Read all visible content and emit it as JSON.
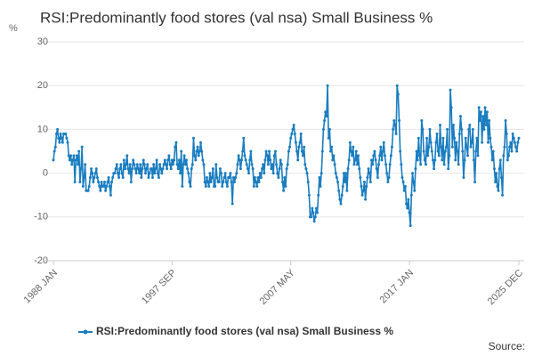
{
  "chart_data": {
    "type": "line",
    "title": "RSI:Predominantly food stores (val nsa) Small Business %",
    "y_label": "%",
    "source": "Source:",
    "categories": [
      "1988 JAN",
      null,
      null,
      null,
      null,
      null,
      null,
      null,
      null,
      null,
      null,
      null,
      null,
      null,
      null,
      null,
      null,
      null,
      null,
      null,
      null,
      null,
      null,
      null,
      null,
      null,
      null,
      null,
      null,
      null,
      null,
      null,
      null,
      null,
      null,
      null,
      null,
      null,
      null,
      null,
      null,
      null,
      null,
      null,
      null,
      null,
      null,
      null,
      null,
      null,
      null,
      null,
      null,
      null,
      null,
      null,
      null,
      null,
      null,
      null,
      null,
      null,
      null,
      null,
      null,
      null,
      null,
      null,
      null,
      null,
      null,
      null,
      null,
      null,
      null,
      null,
      null,
      null,
      null,
      null,
      null,
      null,
      null,
      null,
      null,
      null,
      null,
      null,
      null,
      null,
      null,
      null,
      null,
      null,
      null,
      null,
      null,
      null,
      null,
      null,
      null,
      null,
      null,
      null,
      null,
      null,
      null,
      null,
      null,
      null,
      null,
      null,
      null,
      null,
      null,
      null,
      "1997 SEP",
      null,
      null,
      null,
      null,
      null,
      null,
      null,
      null,
      null,
      null,
      null,
      null,
      null,
      null,
      null,
      null,
      null,
      null,
      null,
      null,
      null,
      null,
      null,
      null,
      null,
      null,
      null,
      null,
      null,
      null,
      null,
      null,
      null,
      null,
      null,
      null,
      null,
      null,
      null,
      null,
      null,
      null,
      null,
      null,
      null,
      null,
      null,
      null,
      null,
      null,
      null,
      null,
      null,
      null,
      null,
      null,
      null,
      null,
      null,
      null,
      null,
      null,
      null,
      null,
      null,
      null,
      null,
      null,
      null,
      null,
      null,
      null,
      null,
      null,
      null,
      null,
      null,
      null,
      null,
      null,
      null,
      null,
      null,
      null,
      null,
      null,
      null,
      null,
      null,
      null,
      null,
      null,
      null,
      null,
      null,
      null,
      null,
      null,
      null,
      null,
      null,
      null,
      null,
      null,
      null,
      null,
      null,
      null,
      null,
      null,
      null,
      null,
      null,
      null,
      null,
      "2007 MAY",
      null,
      null,
      null,
      null,
      null,
      null,
      null,
      null,
      null,
      null,
      null,
      null,
      null,
      null,
      null,
      null,
      null,
      null,
      null,
      null,
      null,
      null,
      null,
      null,
      null,
      null,
      null,
      null,
      null,
      null,
      null,
      null,
      null,
      null,
      null,
      null,
      null,
      null,
      null,
      null,
      null,
      null,
      null,
      null,
      null,
      null,
      null,
      null,
      null,
      null,
      null,
      null,
      null,
      null,
      null,
      null,
      null,
      null,
      null,
      null,
      null,
      null,
      null,
      null,
      null,
      null,
      null,
      null,
      null,
      null,
      null,
      null,
      null,
      null,
      null,
      null,
      null,
      null,
      null,
      null,
      null,
      null,
      null,
      null,
      null,
      null,
      null,
      null,
      null,
      null,
      null,
      null,
      null,
      null,
      null,
      null,
      null,
      null,
      null,
      null,
      null,
      null,
      null,
      null,
      null,
      null,
      null,
      null,
      null,
      null,
      null,
      null,
      null,
      null,
      null,
      "2017 JAN",
      null,
      null,
      null,
      null,
      null,
      null,
      null,
      null,
      null,
      null,
      null,
      null,
      null,
      null,
      null,
      null,
      null,
      null,
      null,
      null,
      null,
      null,
      null,
      null,
      null,
      null,
      null,
      null,
      null,
      null,
      null,
      null,
      null,
      null,
      null,
      null,
      null,
      null,
      null,
      null,
      null,
      null,
      null,
      null,
      null,
      null,
      null,
      null,
      null,
      null,
      null,
      null,
      null,
      null,
      null,
      null,
      null,
      null,
      null,
      null,
      null,
      null,
      null,
      null,
      null,
      null,
      null,
      null,
      null,
      null,
      null,
      null,
      null,
      null,
      null,
      null,
      null,
      null,
      null,
      null,
      null,
      null,
      null,
      null,
      null,
      null,
      null,
      null,
      null,
      null,
      null,
      null,
      null,
      null,
      null,
      null,
      null,
      null,
      null,
      null,
      null,
      null,
      null,
      null,
      null,
      null,
      "2025 DEC"
    ],
    "series": [
      {
        "name": "RSI:Predominantly food stores (val nsa) Small Business %",
        "color": "#1a7dc0",
        "values": [
          3,
          5,
          6,
          9,
          10,
          8,
          7,
          9,
          8,
          7,
          9,
          9,
          9,
          8,
          7,
          4,
          3,
          4,
          2,
          3,
          4,
          -2,
          3,
          4,
          2,
          5,
          -2,
          1,
          6,
          -3,
          -1,
          2,
          -4,
          -4,
          -4,
          -3,
          -1,
          1,
          0,
          -2,
          -1,
          0,
          1,
          -1,
          -2,
          -3,
          -4,
          -2,
          -3,
          -3,
          -2,
          -4,
          -3,
          -2,
          -1,
          -3,
          -5,
          -2,
          -1,
          0,
          0,
          1,
          2,
          0,
          -1,
          1,
          2,
          0,
          -1,
          3,
          1,
          2,
          4,
          1,
          0,
          2,
          -2,
          1,
          3,
          2,
          1,
          0,
          2,
          1,
          0,
          2,
          -1,
          1,
          3,
          2,
          0,
          1,
          2,
          -1,
          0,
          1,
          1,
          -1,
          2,
          0,
          1,
          3,
          0,
          -1,
          2,
          1,
          0,
          1,
          2,
          3,
          2,
          1,
          3,
          4,
          2,
          1,
          3,
          2,
          3,
          6,
          7,
          2,
          1,
          3,
          0,
          5,
          -3,
          2,
          4,
          2,
          3,
          1,
          0,
          -2,
          -3,
          1,
          2,
          8,
          4,
          3,
          5,
          6,
          4,
          5,
          7,
          5,
          3,
          2,
          -2,
          -3,
          -1,
          -2,
          -3,
          0,
          -2,
          -1,
          1,
          -3,
          -3,
          2,
          -1,
          -2,
          -2,
          1,
          0,
          -3,
          -2,
          -1,
          0,
          -2,
          -3,
          -1,
          -1,
          0,
          -2,
          -7,
          -1,
          -2,
          -1,
          0,
          2,
          4,
          3,
          1,
          3,
          5,
          8,
          4,
          3,
          2,
          1,
          0,
          3,
          5,
          2,
          1,
          -3,
          -1,
          -2,
          -3,
          -1,
          -2,
          0,
          -1,
          1,
          2,
          0,
          3,
          5,
          4,
          2,
          5,
          3,
          1,
          2,
          0,
          4,
          5,
          2,
          0,
          -1,
          1,
          3,
          2,
          -2,
          -4,
          -1,
          -3,
          1,
          2,
          5,
          6,
          8,
          9,
          10,
          11,
          9,
          7,
          5,
          3,
          6,
          7,
          9,
          5,
          4,
          6,
          2,
          1,
          0,
          -2,
          -5,
          -10,
          -10,
          -8,
          -9,
          -11,
          -10,
          -8,
          -9,
          -5,
          -1,
          -3,
          0,
          5,
          10,
          12,
          14,
          13,
          20,
          8,
          10,
          5,
          6,
          3,
          4,
          2,
          0,
          -1,
          -2,
          -4,
          -6,
          -7,
          -5,
          -3,
          0,
          -2,
          0,
          -4,
          1,
          3,
          7,
          5,
          4,
          6,
          2,
          3,
          5,
          2,
          4,
          1,
          -1,
          -3,
          -5,
          -4,
          -2,
          -6,
          -3,
          -1,
          1,
          0,
          -2,
          3,
          2,
          4,
          5,
          3,
          1,
          -1,
          2,
          4,
          6,
          3,
          5,
          7,
          4,
          2,
          0,
          -2,
          -1,
          2,
          4,
          6,
          10,
          12,
          11,
          9,
          20,
          18,
          12,
          5,
          2,
          -1,
          -2,
          -4,
          -3,
          -7,
          -8,
          -6,
          -9,
          -12,
          -5,
          0,
          -2,
          -4,
          1,
          5,
          3,
          8,
          4,
          2,
          12,
          10,
          5,
          3,
          2,
          8,
          4,
          6,
          10,
          7,
          5,
          3,
          1,
          3,
          7,
          9,
          5,
          4,
          11,
          6,
          3,
          8,
          2,
          5,
          6,
          10,
          1,
          4,
          19,
          15,
          6,
          11,
          8,
          3,
          7,
          5,
          2,
          9,
          13,
          10,
          5,
          -1,
          3,
          8,
          6,
          4,
          10,
          11,
          6,
          7,
          10,
          3,
          -2,
          5,
          8,
          4,
          15,
          12,
          14,
          7,
          13,
          10,
          15,
          11,
          14,
          7,
          12,
          8,
          6,
          3,
          5,
          1,
          -2,
          0,
          -3,
          -4,
          1,
          3,
          -1,
          -5,
          4,
          6,
          12,
          9,
          3,
          4,
          6,
          7,
          5,
          9,
          8,
          7,
          6,
          5,
          7,
          8
        ]
      }
    ],
    "ylim": [
      -20,
      30
    ],
    "yticks": [
      -20,
      -10,
      0,
      10,
      20,
      30
    ],
    "grid": true,
    "legend": "bottom"
  }
}
